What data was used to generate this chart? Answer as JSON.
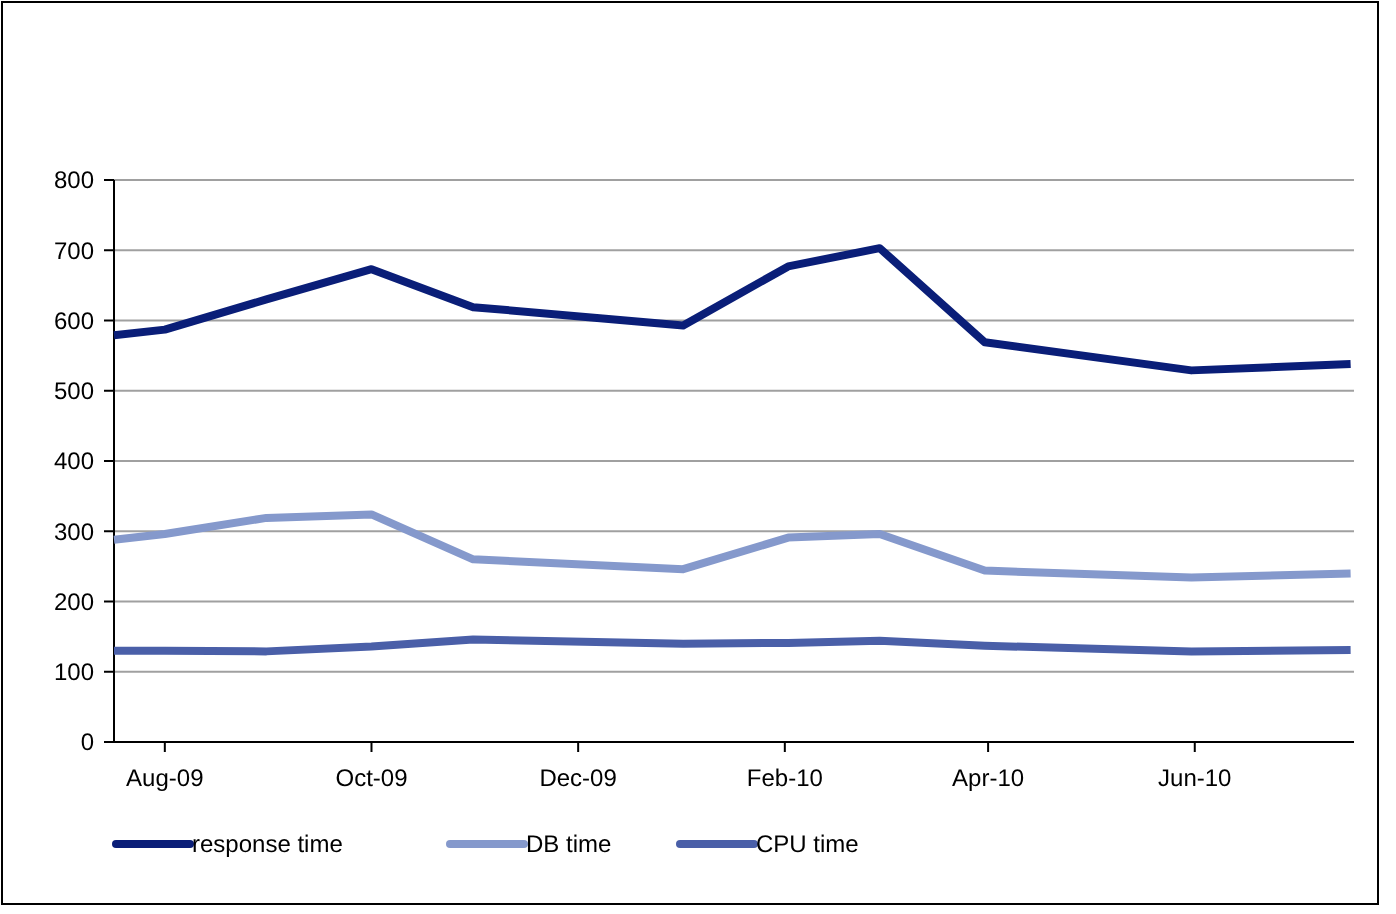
{
  "chart_data": {
    "type": "line",
    "x": [
      "2009-08-01",
      "2009-08-16",
      "2009-09-15",
      "2009-10-16",
      "2009-11-15",
      "2010-01-16",
      "2010-02-16",
      "2010-03-15",
      "2010-04-15",
      "2010-06-15",
      "2010-08-01"
    ],
    "series": [
      {
        "name": "response time",
        "color": "#0a1e78",
        "values": [
          579,
          587,
          630,
          673,
          619,
          593,
          677,
          703,
          569,
          529,
          538
        ]
      },
      {
        "name": "DB time",
        "color": "#8599cc",
        "values": [
          288,
          296,
          319,
          324,
          260,
          246,
          291,
          296,
          244,
          234,
          240
        ]
      },
      {
        "name": "CPU time",
        "color": "#4a5fa8",
        "values": [
          130,
          130,
          129,
          136,
          146,
          140,
          141,
          144,
          137,
          129,
          131
        ]
      }
    ],
    "xlim": [
      "2009-08-01",
      "2010-08-02"
    ],
    "xticks": [
      {
        "value": "2009-08-16",
        "label": "Aug-09"
      },
      {
        "value": "2009-10-16",
        "label": "Oct-09"
      },
      {
        "value": "2009-12-16",
        "label": "Dec-09"
      },
      {
        "value": "2010-02-15",
        "label": "Feb-10"
      },
      {
        "value": "2010-04-16",
        "label": "Apr-10"
      },
      {
        "value": "2010-06-16",
        "label": "Jun-10"
      }
    ],
    "ylim": [
      0,
      800
    ],
    "yticks": [
      0,
      100,
      200,
      300,
      400,
      500,
      600,
      700,
      800
    ],
    "grid": "y",
    "legend": "bottom",
    "marker": "none",
    "line_style": "solid"
  }
}
